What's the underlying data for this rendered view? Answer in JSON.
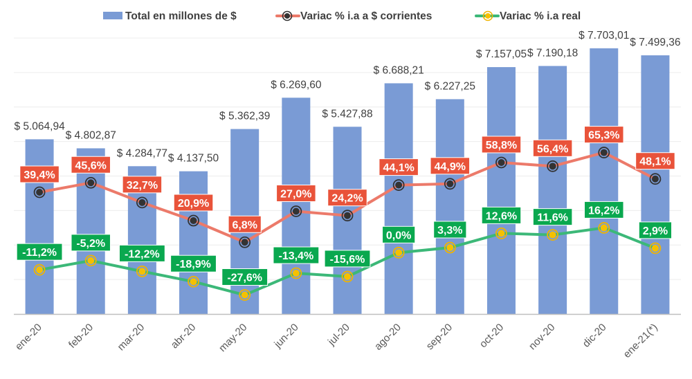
{
  "chart_data": {
    "type": "bar",
    "title": "",
    "xlabel": "",
    "ylabel": "",
    "categories": [
      "ene-20",
      "feb-20",
      "mar-20",
      "abr-20",
      "may-20",
      "jun-20",
      "jul-20",
      "ago-20",
      "sep-20",
      "oct-20",
      "nov-20",
      "dic-20",
      "ene-21(*)"
    ],
    "ylim": [
      0,
      8000
    ],
    "y2lim": [
      -40,
      140
    ],
    "grid": true,
    "legend_position": "top",
    "colors": {
      "bars": "#7a9bd5",
      "corrientes_line": "#ec7a6a",
      "corrientes_label_bg": "#e9533a",
      "corrientes_marker": "#333333",
      "real_line": "#3cb878",
      "real_label_bg": "#0aa84f",
      "real_marker": "#f5c000",
      "grid": "#ececec",
      "axis": "#bfbfbf"
    },
    "series": [
      {
        "name": "Total en millones de $",
        "type": "bar",
        "axis": "primary",
        "values": [
          5064.94,
          4802.87,
          4284.77,
          4137.5,
          5362.39,
          6269.6,
          5427.88,
          6688.21,
          6227.25,
          7157.05,
          7190.18,
          7703.01,
          7499.36
        ],
        "labels": [
          "$ 5.064,94",
          "$ 4.802,87",
          "$ 4.284,77",
          "$ 4.137,50",
          "$ 5.362,39",
          "$ 6.269,60",
          "$ 5.427,88",
          "$ 6.688,21",
          "$ 6.227,25",
          "$ 7.157,05",
          "$ 7.190,18",
          "$ 7.703,01",
          "$ 7.499,36"
        ]
      },
      {
        "name": "Variac % i.a a $ corrientes",
        "type": "line",
        "axis": "secondary",
        "values": [
          39.4,
          45.6,
          32.7,
          20.9,
          6.8,
          27.0,
          24.2,
          44.1,
          44.9,
          58.8,
          56.4,
          65.3,
          48.1
        ],
        "labels": [
          "39,4%",
          "45,6%",
          "32,7%",
          "20,9%",
          "6,8%",
          "27,0%",
          "24,2%",
          "44,1%",
          "44,9%",
          "58,8%",
          "56,4%",
          "65,3%",
          "48,1%"
        ]
      },
      {
        "name": "Variac % i.a real",
        "type": "line",
        "axis": "secondary",
        "values": [
          -11.2,
          -5.2,
          -12.2,
          -18.9,
          -27.6,
          -13.4,
          -15.6,
          0.0,
          3.3,
          12.6,
          11.6,
          16.2,
          2.9
        ],
        "labels": [
          "-11,2%",
          "-5,2%",
          "-12,2%",
          "-18,9%",
          "-27,6%",
          "-13,4%",
          "-15,6%",
          "0,0%",
          "3,3%",
          "12,6%",
          "11,6%",
          "16,2%",
          "2,9%"
        ]
      }
    ]
  }
}
